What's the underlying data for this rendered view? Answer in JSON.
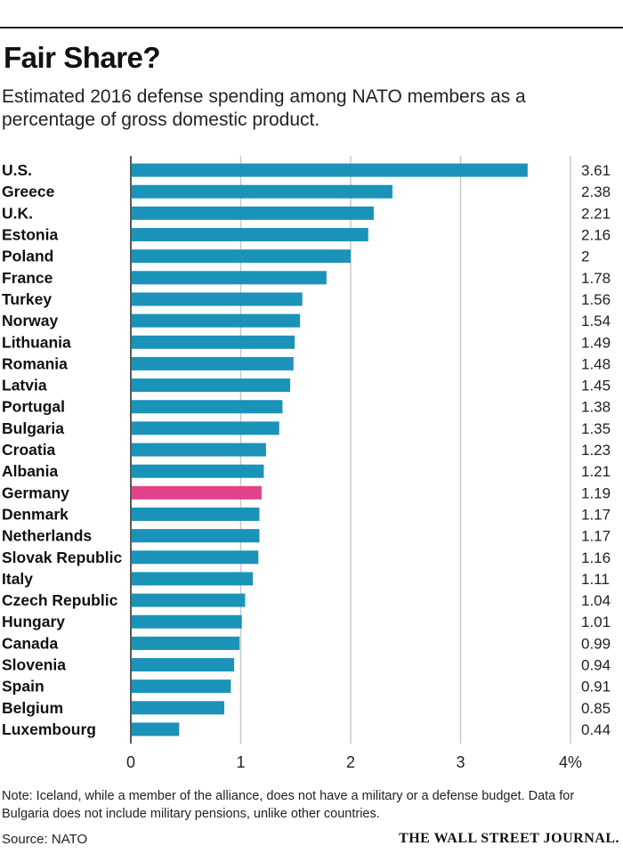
{
  "header": {
    "title": "Fair Share?",
    "subtitle": "Estimated 2016 defense spending among NATO members as a percentage of gross domestic product."
  },
  "colors": {
    "bar": "#1b93b8",
    "highlight": "#e0448a",
    "grid": "#c8c8c8"
  },
  "chart_data": {
    "type": "bar",
    "orientation": "horizontal",
    "title": "Fair Share?",
    "categories": [
      "U.S.",
      "Greece",
      "U.K.",
      "Estonia",
      "Poland",
      "France",
      "Turkey",
      "Norway",
      "Lithuania",
      "Romania",
      "Latvia",
      "Portugal",
      "Bulgaria",
      "Croatia",
      "Albania",
      "Germany",
      "Denmark",
      "Netherlands",
      "Slovak Republic",
      "Italy",
      "Czech Republic",
      "Hungary",
      "Canada",
      "Slovenia",
      "Spain",
      "Belgium",
      "Luxembourg"
    ],
    "values": [
      3.61,
      2.38,
      2.21,
      2.16,
      2,
      1.78,
      1.56,
      1.54,
      1.49,
      1.48,
      1.45,
      1.38,
      1.35,
      1.23,
      1.21,
      1.19,
      1.17,
      1.17,
      1.16,
      1.11,
      1.04,
      1.01,
      0.99,
      0.94,
      0.91,
      0.85,
      0.44
    ],
    "value_labels": [
      "3.61",
      "2.38",
      "2.21",
      "2.16",
      "2",
      "1.78",
      "1.56",
      "1.54",
      "1.49",
      "1.48",
      "1.45",
      "1.38",
      "1.35",
      "1.23",
      "1.21",
      "1.19",
      "1.17",
      "1.17",
      "1.16",
      "1.11",
      "1.04",
      "1.01",
      "0.99",
      "0.94",
      "0.91",
      "0.85",
      "0.44"
    ],
    "highlight": "Germany",
    "xlim": [
      0,
      4
    ],
    "xticks": [
      0,
      1,
      2,
      3,
      4
    ],
    "xtick_labels": [
      "0",
      "1",
      "2",
      "3",
      "4%"
    ],
    "grid": true
  },
  "footer": {
    "note": "Note: Iceland, while a member of the alliance, does not have a military or a defense budget. Data for Bulgaria does not include military pensions, unlike other countries.",
    "source": "Source: NATO",
    "logo": "THE WALL STREET JOURNAL."
  }
}
